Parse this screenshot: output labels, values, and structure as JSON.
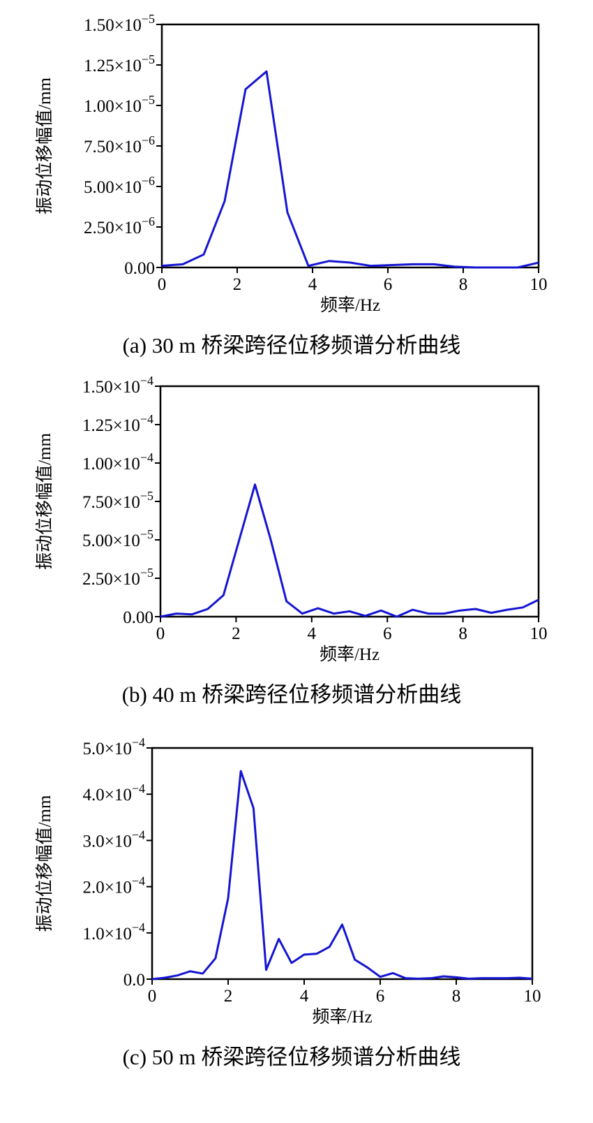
{
  "chart_data": [
    {
      "type": "line",
      "caption": "(a) 30 m 桥梁跨径位移频谱分析曲线",
      "x_label": "频率/Hz",
      "y_label": "振动位移幅值/mm",
      "x": [
        0,
        0.556,
        1.111,
        1.667,
        2.222,
        2.778,
        3.333,
        3.889,
        4.444,
        5.0,
        5.556,
        6.111,
        6.667,
        7.222,
        7.778,
        8.333,
        8.889,
        9.444,
        10
      ],
      "series": [
        {
          "color": "#1414d2",
          "values": [
            1e-07,
            2e-07,
            8e-07,
            4.1e-06,
            1.1e-05,
            1.21e-05,
            3.4e-06,
            1e-07,
            4e-07,
            3e-07,
            1e-07,
            1.5e-07,
            2e-07,
            2e-07,
            5e-08,
            0.0,
            0.0,
            0.0,
            3e-07
          ]
        }
      ],
      "xlim": [
        0,
        10
      ],
      "xticks": [
        0,
        2,
        4,
        6,
        8,
        10
      ],
      "ylim": [
        0,
        1.5e-05
      ],
      "yticks": [
        {
          "value": 0,
          "label": "0.00"
        },
        {
          "value": 2.5e-06,
          "label": "2.50×10−6"
        },
        {
          "value": 5e-06,
          "label": "5.00×10−6"
        },
        {
          "value": 7.5e-06,
          "label": "7.50×10−6"
        },
        {
          "value": 1e-05,
          "label": "1.00×10−5"
        },
        {
          "value": 1.25e-05,
          "label": "1.25×10−5"
        },
        {
          "value": 1.5e-05,
          "label": "1.50×10−5"
        }
      ]
    },
    {
      "type": "line",
      "caption": "(b) 40 m 桥梁跨径位移频谱分析曲线",
      "x_label": "频率/Hz",
      "y_label": "振动位移幅值/mm",
      "x": [
        0,
        0.417,
        0.833,
        1.25,
        1.667,
        2.083,
        2.5,
        2.917,
        3.333,
        3.75,
        4.167,
        4.583,
        5.0,
        5.417,
        5.833,
        6.25,
        6.667,
        7.083,
        7.5,
        7.917,
        8.333,
        8.75,
        9.167,
        9.583,
        10
      ],
      "series": [
        {
          "color": "#1414d2",
          "values": [
            0,
            2e-06,
            1.5e-06,
            5e-06,
            1.4e-05,
            5e-05,
            8.6e-05,
            5e-05,
            1e-05,
            2e-06,
            5.5e-06,
            2e-06,
            3.5e-06,
            5e-07,
            4e-06,
            0,
            4.5e-06,
            2e-06,
            2e-06,
            4e-06,
            5e-06,
            2.5e-06,
            4.5e-06,
            6e-06,
            1.1e-05
          ]
        }
      ],
      "xlim": [
        0,
        10
      ],
      "xticks": [
        0,
        2,
        4,
        6,
        8,
        10
      ],
      "ylim": [
        0,
        0.00015
      ],
      "yticks": [
        {
          "value": 0,
          "label": "0.00"
        },
        {
          "value": 2.5e-05,
          "label": "2.50×10−5"
        },
        {
          "value": 5e-05,
          "label": "5.00×10−5"
        },
        {
          "value": 7.5e-05,
          "label": "7.50×10−5"
        },
        {
          "value": 0.0001,
          "label": "1.00×10−4"
        },
        {
          "value": 0.000125,
          "label": "1.25×10−4"
        },
        {
          "value": 0.00015,
          "label": "1.50×10−4"
        }
      ]
    },
    {
      "type": "line",
      "caption": "(c) 50 m 桥梁跨径位移频谱分析曲线",
      "x_label": "频率/Hz",
      "y_label": "振动位移幅值/mm",
      "x": [
        0,
        0.333,
        0.667,
        1.0,
        1.333,
        1.667,
        2.0,
        2.333,
        2.667,
        3.0,
        3.333,
        3.667,
        4.0,
        4.333,
        4.667,
        5.0,
        5.333,
        5.667,
        6.0,
        6.333,
        6.667,
        7.0,
        7.333,
        7.667,
        8.0,
        8.333,
        8.667,
        9.0,
        9.333,
        9.667,
        10
      ],
      "series": [
        {
          "color": "#1414d2",
          "values": [
            0,
            3e-06,
            8e-06,
            1.7e-05,
            1.2e-05,
            4.5e-05,
            0.000175,
            0.00045,
            0.00037,
            2e-05,
            8.7e-05,
            3.5e-05,
            5.3e-05,
            5.5e-05,
            7e-05,
            0.000118,
            4.2e-05,
            2.5e-05,
            5e-06,
            1.3e-05,
            2e-06,
            1e-06,
            2e-06,
            6e-06,
            4e-06,
            1e-06,
            2e-06,
            2e-06,
            2e-06,
            3e-06,
            1e-06
          ]
        }
      ],
      "xlim": [
        0,
        10
      ],
      "xticks": [
        0,
        2,
        4,
        6,
        8,
        10
      ],
      "ylim": [
        0,
        0.0005
      ],
      "yticks": [
        {
          "value": 0,
          "label": "0.0"
        },
        {
          "value": 0.0001,
          "label": "1.0×10−4"
        },
        {
          "value": 0.0002,
          "label": "2.0×10−4"
        },
        {
          "value": 0.0003,
          "label": "3.0×10−4"
        },
        {
          "value": 0.0004,
          "label": "4.0×10−4"
        },
        {
          "value": 0.0005,
          "label": "5.0×10−4"
        }
      ]
    }
  ]
}
